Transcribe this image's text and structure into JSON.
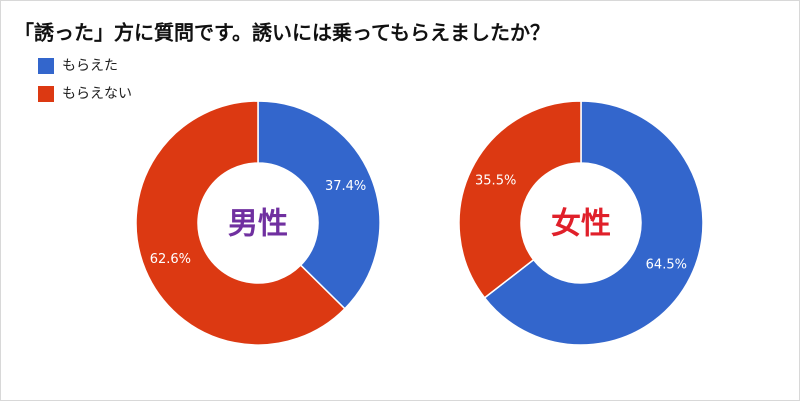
{
  "title": "「誘った」方に質問です。誘いには乗ってもらえましたか？",
  "chart_data": [
    {
      "type": "donut",
      "center_label": "男性",
      "center_label_color": "#7030a0",
      "categories": [
        "もらえた",
        "もらえない"
      ],
      "values": [
        37.4,
        62.6
      ],
      "value_labels": [
        "37.4%",
        "62.6%"
      ],
      "colors": [
        "#3366cc",
        "#dc3912"
      ]
    },
    {
      "type": "donut",
      "center_label": "女性",
      "center_label_color": "#e0202a",
      "categories": [
        "もらえた",
        "もらえない"
      ],
      "values": [
        64.5,
        35.5
      ],
      "value_labels": [
        "64.5%",
        "35.5%"
      ],
      "colors": [
        "#3366cc",
        "#dc3912"
      ]
    }
  ]
}
